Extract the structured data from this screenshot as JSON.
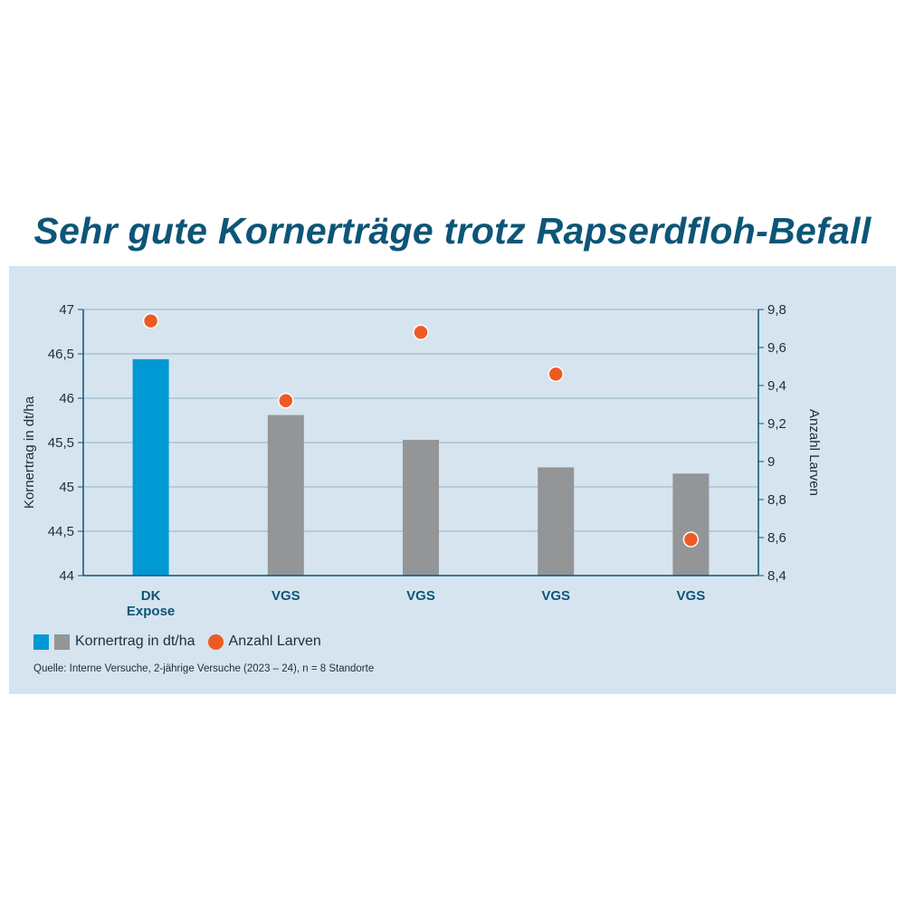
{
  "title": "Sehr gute Kornerträge trotz Rapserdfloh-Befall",
  "colors": {
    "bar_highlight": "#0099d3",
    "bar_default": "#939597",
    "marker": "#ee5a24",
    "title": "#0d5577",
    "panel_bg": "#d6e4ef",
    "axis": "#0d5577",
    "grid": "#8fb3cc"
  },
  "chart_data": {
    "type": "bar",
    "categories": [
      [
        "DK",
        "Expose"
      ],
      [
        "VGS"
      ],
      [
        "VGS"
      ],
      [
        "VGS"
      ],
      [
        "VGS"
      ]
    ],
    "series": [
      {
        "name": "Kornertrag in dt/ha",
        "type": "bar",
        "axis": "left",
        "values": [
          46.44,
          45.81,
          45.53,
          45.22,
          45.15
        ],
        "colors": [
          "#0099d3",
          "#939597",
          "#939597",
          "#939597",
          "#939597"
        ]
      },
      {
        "name": "Anzahl Larven",
        "type": "scatter",
        "axis": "right",
        "values": [
          9.74,
          9.32,
          9.68,
          9.46,
          8.59
        ],
        "color": "#ee5a24"
      }
    ],
    "y_left": {
      "label": "Kornertrag in dt/ha",
      "min": 44,
      "max": 47,
      "ticks": [
        "44",
        "44,5",
        "45",
        "45,5",
        "46",
        "46,5",
        "47"
      ]
    },
    "y_right": {
      "label": "Anzahl Larven",
      "min": 8.4,
      "max": 9.8,
      "ticks": [
        "8,4",
        "8,6",
        "8,8",
        "9",
        "9,2",
        "9,4",
        "9,6",
        "9,8"
      ]
    },
    "grid": true,
    "legend_placement": "bottom-left"
  },
  "legend": {
    "bar_label": "Kornertrag in dt/ha",
    "marker_label": "Anzahl Larven"
  },
  "source": "Quelle: Interne Versuche, 2-jährige Versuche (2023 – 24), n = 8 Standorte"
}
